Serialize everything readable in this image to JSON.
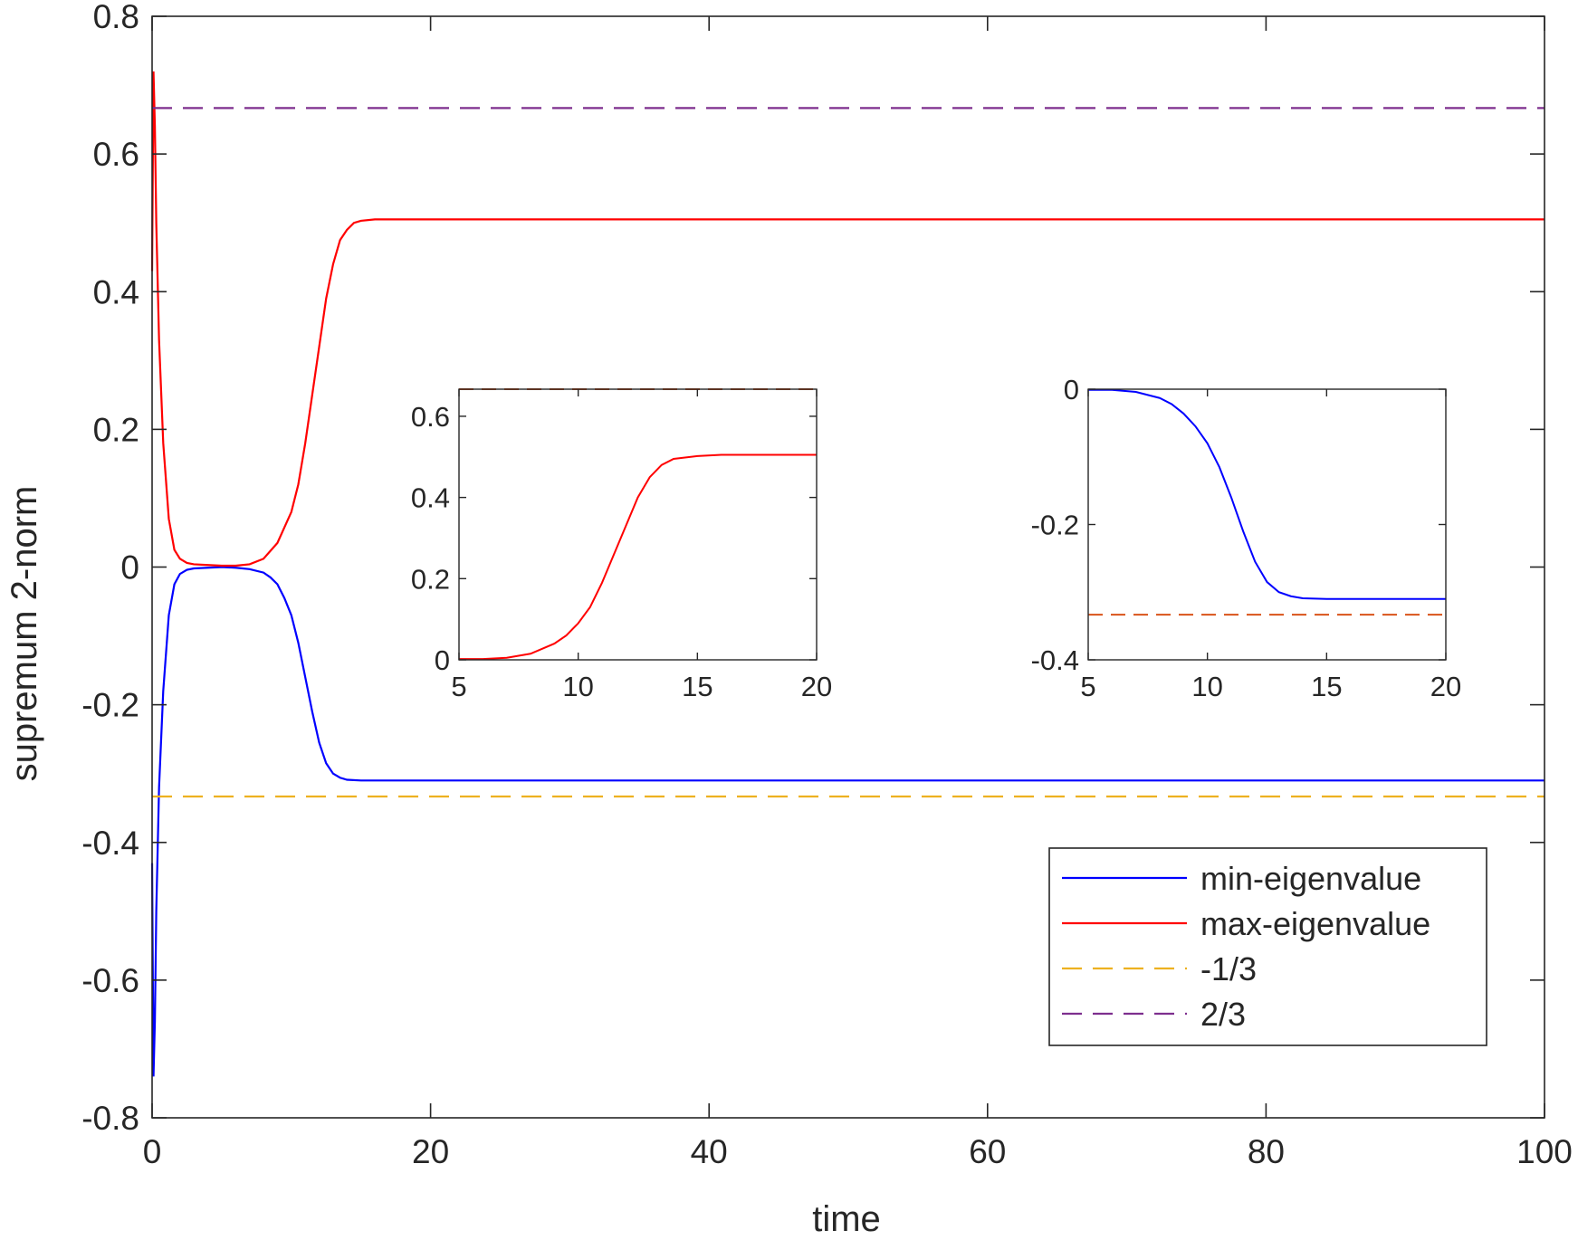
{
  "chart_data": {
    "type": "line",
    "title": "",
    "xlabel": "time",
    "ylabel": "supremum 2-norm",
    "xlim": [
      0,
      100
    ],
    "ylim": [
      -0.8,
      0.8
    ],
    "xticks": [
      0,
      20,
      40,
      60,
      80,
      100
    ],
    "yticks": [
      -0.8,
      -0.6,
      -0.4,
      -0.2,
      0,
      0.2,
      0.4,
      0.6,
      0.8
    ],
    "xtick_labels": [
      "0",
      "20",
      "40",
      "60",
      "80",
      "100"
    ],
    "ytick_labels": [
      "-0.8",
      "-0.6",
      "-0.4",
      "-0.2",
      "0",
      "0.2",
      "0.4",
      "0.6",
      "0.8"
    ],
    "grid": false,
    "legend_position": "lower-right",
    "series": [
      {
        "name": "min-eigenvalue",
        "color": "#0000ff",
        "style": "solid",
        "points": [
          [
            0,
            -0.43
          ],
          [
            0.1,
            -0.74
          ],
          [
            0.2,
            -0.66
          ],
          [
            0.3,
            -0.5
          ],
          [
            0.5,
            -0.32
          ],
          [
            0.8,
            -0.18
          ],
          [
            1.2,
            -0.07
          ],
          [
            1.6,
            -0.025
          ],
          [
            2,
            -0.01
          ],
          [
            2.5,
            -0.004
          ],
          [
            3,
            -0.002
          ],
          [
            4,
            -0.001
          ],
          [
            5,
            0
          ],
          [
            6,
            -0.001
          ],
          [
            7,
            -0.003
          ],
          [
            8,
            -0.008
          ],
          [
            8.5,
            -0.015
          ],
          [
            9,
            -0.025
          ],
          [
            9.5,
            -0.045
          ],
          [
            10,
            -0.07
          ],
          [
            10.5,
            -0.11
          ],
          [
            11,
            -0.16
          ],
          [
            11.5,
            -0.21
          ],
          [
            12,
            -0.255
          ],
          [
            12.5,
            -0.285
          ],
          [
            13,
            -0.3
          ],
          [
            13.5,
            -0.306
          ],
          [
            14,
            -0.309
          ],
          [
            15,
            -0.31
          ],
          [
            20,
            -0.31
          ],
          [
            100,
            -0.31
          ]
        ]
      },
      {
        "name": "max-eigenvalue",
        "color": "#ff0000",
        "style": "solid",
        "points": [
          [
            0,
            0.43
          ],
          [
            0.1,
            0.72
          ],
          [
            0.2,
            0.64
          ],
          [
            0.3,
            0.5
          ],
          [
            0.5,
            0.33
          ],
          [
            0.8,
            0.18
          ],
          [
            1.2,
            0.07
          ],
          [
            1.6,
            0.025
          ],
          [
            2,
            0.012
          ],
          [
            2.5,
            0.006
          ],
          [
            3,
            0.004
          ],
          [
            4,
            0.003
          ],
          [
            5,
            0.002
          ],
          [
            6,
            0.002
          ],
          [
            7,
            0.004
          ],
          [
            8,
            0.012
          ],
          [
            9,
            0.035
          ],
          [
            10,
            0.08
          ],
          [
            10.5,
            0.12
          ],
          [
            11,
            0.18
          ],
          [
            11.5,
            0.25
          ],
          [
            12,
            0.32
          ],
          [
            12.5,
            0.39
          ],
          [
            13,
            0.44
          ],
          [
            13.5,
            0.475
          ],
          [
            14,
            0.49
          ],
          [
            14.5,
            0.5
          ],
          [
            15,
            0.503
          ],
          [
            16,
            0.505
          ],
          [
            20,
            0.505
          ],
          [
            100,
            0.505
          ]
        ]
      },
      {
        "name": "-1/3",
        "color": "#edb120",
        "style": "dashed",
        "points": [
          [
            0,
            -0.3333
          ],
          [
            100,
            -0.3333
          ]
        ]
      },
      {
        "name": "2/3",
        "color": "#7e2f8e",
        "style": "dashed",
        "points": [
          [
            0,
            0.6667
          ],
          [
            100,
            0.6667
          ]
        ]
      }
    ],
    "insets": [
      {
        "xlim": [
          5,
          20
        ],
        "ylim": [
          0,
          0.6667
        ],
        "xticks": [
          5,
          10,
          15,
          20
        ],
        "yticks": [
          0,
          0.2,
          0.4,
          0.6
        ],
        "xtick_labels": [
          "5",
          "10",
          "15",
          "20"
        ],
        "ytick_labels": [
          "0",
          "0.2",
          "0.4",
          "0.6"
        ],
        "series": [
          {
            "name": "max-eigenvalue",
            "color": "#ff0000",
            "style": "solid",
            "points": [
              [
                5,
                0.002
              ],
              [
                6,
                0.002
              ],
              [
                7,
                0.005
              ],
              [
                8,
                0.015
              ],
              [
                9,
                0.04
              ],
              [
                9.5,
                0.06
              ],
              [
                10,
                0.09
              ],
              [
                10.5,
                0.13
              ],
              [
                11,
                0.19
              ],
              [
                11.5,
                0.26
              ],
              [
                12,
                0.33
              ],
              [
                12.5,
                0.4
              ],
              [
                13,
                0.45
              ],
              [
                13.5,
                0.48
              ],
              [
                14,
                0.495
              ],
              [
                15,
                0.502
              ],
              [
                16,
                0.505
              ],
              [
                20,
                0.505
              ]
            ]
          },
          {
            "name": "2/3",
            "color": "#d95319",
            "style": "dashed",
            "points": [
              [
                5,
                0.6667
              ],
              [
                20,
                0.6667
              ]
            ]
          }
        ]
      },
      {
        "xlim": [
          5,
          20
        ],
        "ylim": [
          -0.4,
          0
        ],
        "xticks": [
          5,
          10,
          15,
          20
        ],
        "yticks": [
          -0.4,
          -0.2,
          0
        ],
        "xtick_labels": [
          "5",
          "10",
          "15",
          "20"
        ],
        "ytick_labels": [
          "-0.4",
          "-0.2",
          "0"
        ],
        "series": [
          {
            "name": "min-eigenvalue",
            "color": "#0000ff",
            "style": "solid",
            "points": [
              [
                5,
                -0.001
              ],
              [
                6,
                -0.001
              ],
              [
                7,
                -0.004
              ],
              [
                8,
                -0.013
              ],
              [
                8.5,
                -0.022
              ],
              [
                9,
                -0.036
              ],
              [
                9.5,
                -0.055
              ],
              [
                10,
                -0.08
              ],
              [
                10.5,
                -0.115
              ],
              [
                11,
                -0.16
              ],
              [
                11.5,
                -0.21
              ],
              [
                12,
                -0.255
              ],
              [
                12.5,
                -0.285
              ],
              [
                13,
                -0.3
              ],
              [
                13.5,
                -0.306
              ],
              [
                14,
                -0.309
              ],
              [
                15,
                -0.31
              ],
              [
                20,
                -0.31
              ]
            ]
          },
          {
            "name": "-1/3",
            "color": "#d95319",
            "style": "dashed",
            "points": [
              [
                5,
                -0.3333
              ],
              [
                20,
                -0.3333
              ]
            ]
          }
        ]
      }
    ]
  }
}
